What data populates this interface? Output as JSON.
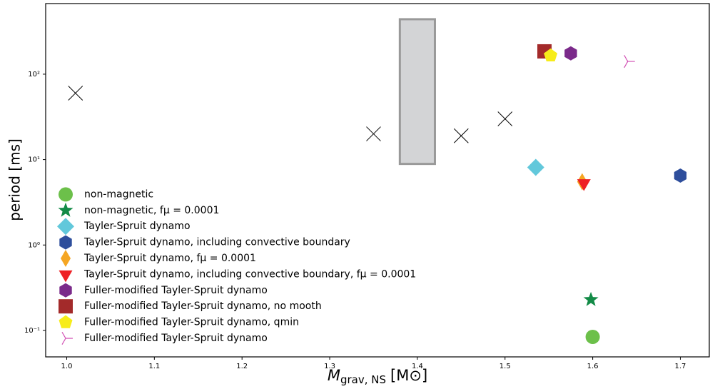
{
  "chart_data": {
    "type": "scatter",
    "xlabel": {
      "main": "M",
      "sub": "grav, NS",
      "unit": "[M⊙]"
    },
    "ylabel": "period [ms]",
    "xlim": [
      0.976,
      1.733
    ],
    "xticks": [
      {
        "value": 1.0,
        "label": "1.0"
      },
      1.1,
      1.2,
      1.3,
      1.4,
      1.5,
      1.6,
      1.7
    ],
    "ylim": [
      0.049,
      671
    ],
    "yticks": [
      {
        "value": 0.1,
        "label": "10⁻¹"
      },
      {
        "value": 1,
        "label": "10⁰"
      },
      {
        "value": 10,
        "label": "10¹"
      },
      {
        "value": 100,
        "label": "10²"
      }
    ],
    "log_y": true,
    "legend": "lower left",
    "region": {
      "x": [
        1.38,
        1.42
      ],
      "y": [
        8.9,
        440
      ],
      "color": "#d3d4d6"
    },
    "series": [
      {
        "name": "non-magnetic",
        "marker": "circle",
        "color": "#6cc04a",
        "x": [
          1.6
        ],
        "values": [
          0.084
        ]
      },
      {
        "name": "non-magnetic, fμ = 0.0001",
        "marker": "star",
        "color": "#138b47",
        "x": [
          1.598
        ],
        "values": [
          0.229
        ]
      },
      {
        "name": "Tayler-Spruit dynamo",
        "marker": "diamond",
        "color": "#62c8db",
        "x": [
          1.535
        ],
        "values": [
          8.1
        ]
      },
      {
        "name": "Tayler-Spruit dynamo, including convective boundary",
        "marker": "hexagon",
        "color": "#2e4e9c",
        "x": [
          1.7
        ],
        "values": [
          6.5
        ]
      },
      {
        "name": "Tayler-Spruit dynamo, fμ = 0.0001",
        "marker": "thin-diamond",
        "color": "#f5a623",
        "x": [
          1.588
        ],
        "values": [
          5.5
        ]
      },
      {
        "name": "Tayler-Spruit dynamo, including convective boundary, fμ = 0.0001",
        "marker": "triangle-down",
        "color": "#ee2024",
        "x": [
          1.59
        ],
        "values": [
          5.3
        ]
      },
      {
        "name": "Fuller-modified Tayler-Spruit dynamo",
        "marker": "hexagon",
        "color": "#7b2a8a",
        "x": [
          1.575
        ],
        "values": [
          175
        ]
      },
      {
        "name": "Fuller-modified Tayler-Spruit dynamo, no mooth",
        "marker": "square",
        "color": "#a32a2a",
        "x": [
          1.545
        ],
        "values": [
          185
        ]
      },
      {
        "name": "Fuller-modified Tayler-Spruit dynamo, qmin",
        "marker": "pentagon",
        "color": "#f7ec1a",
        "x": [
          1.552
        ],
        "values": [
          165
        ]
      },
      {
        "name": "Fuller-modified Tayler-Spruit dynamo",
        "marker": "tri",
        "color": "#d24fb4",
        "x": [
          1.64
        ],
        "values": [
          141
        ]
      },
      {
        "marker": "x",
        "color": "#000000",
        "x": [
          1.01,
          1.35,
          1.45,
          1.5
        ],
        "values": [
          60,
          20,
          19,
          30
        ]
      }
    ]
  }
}
